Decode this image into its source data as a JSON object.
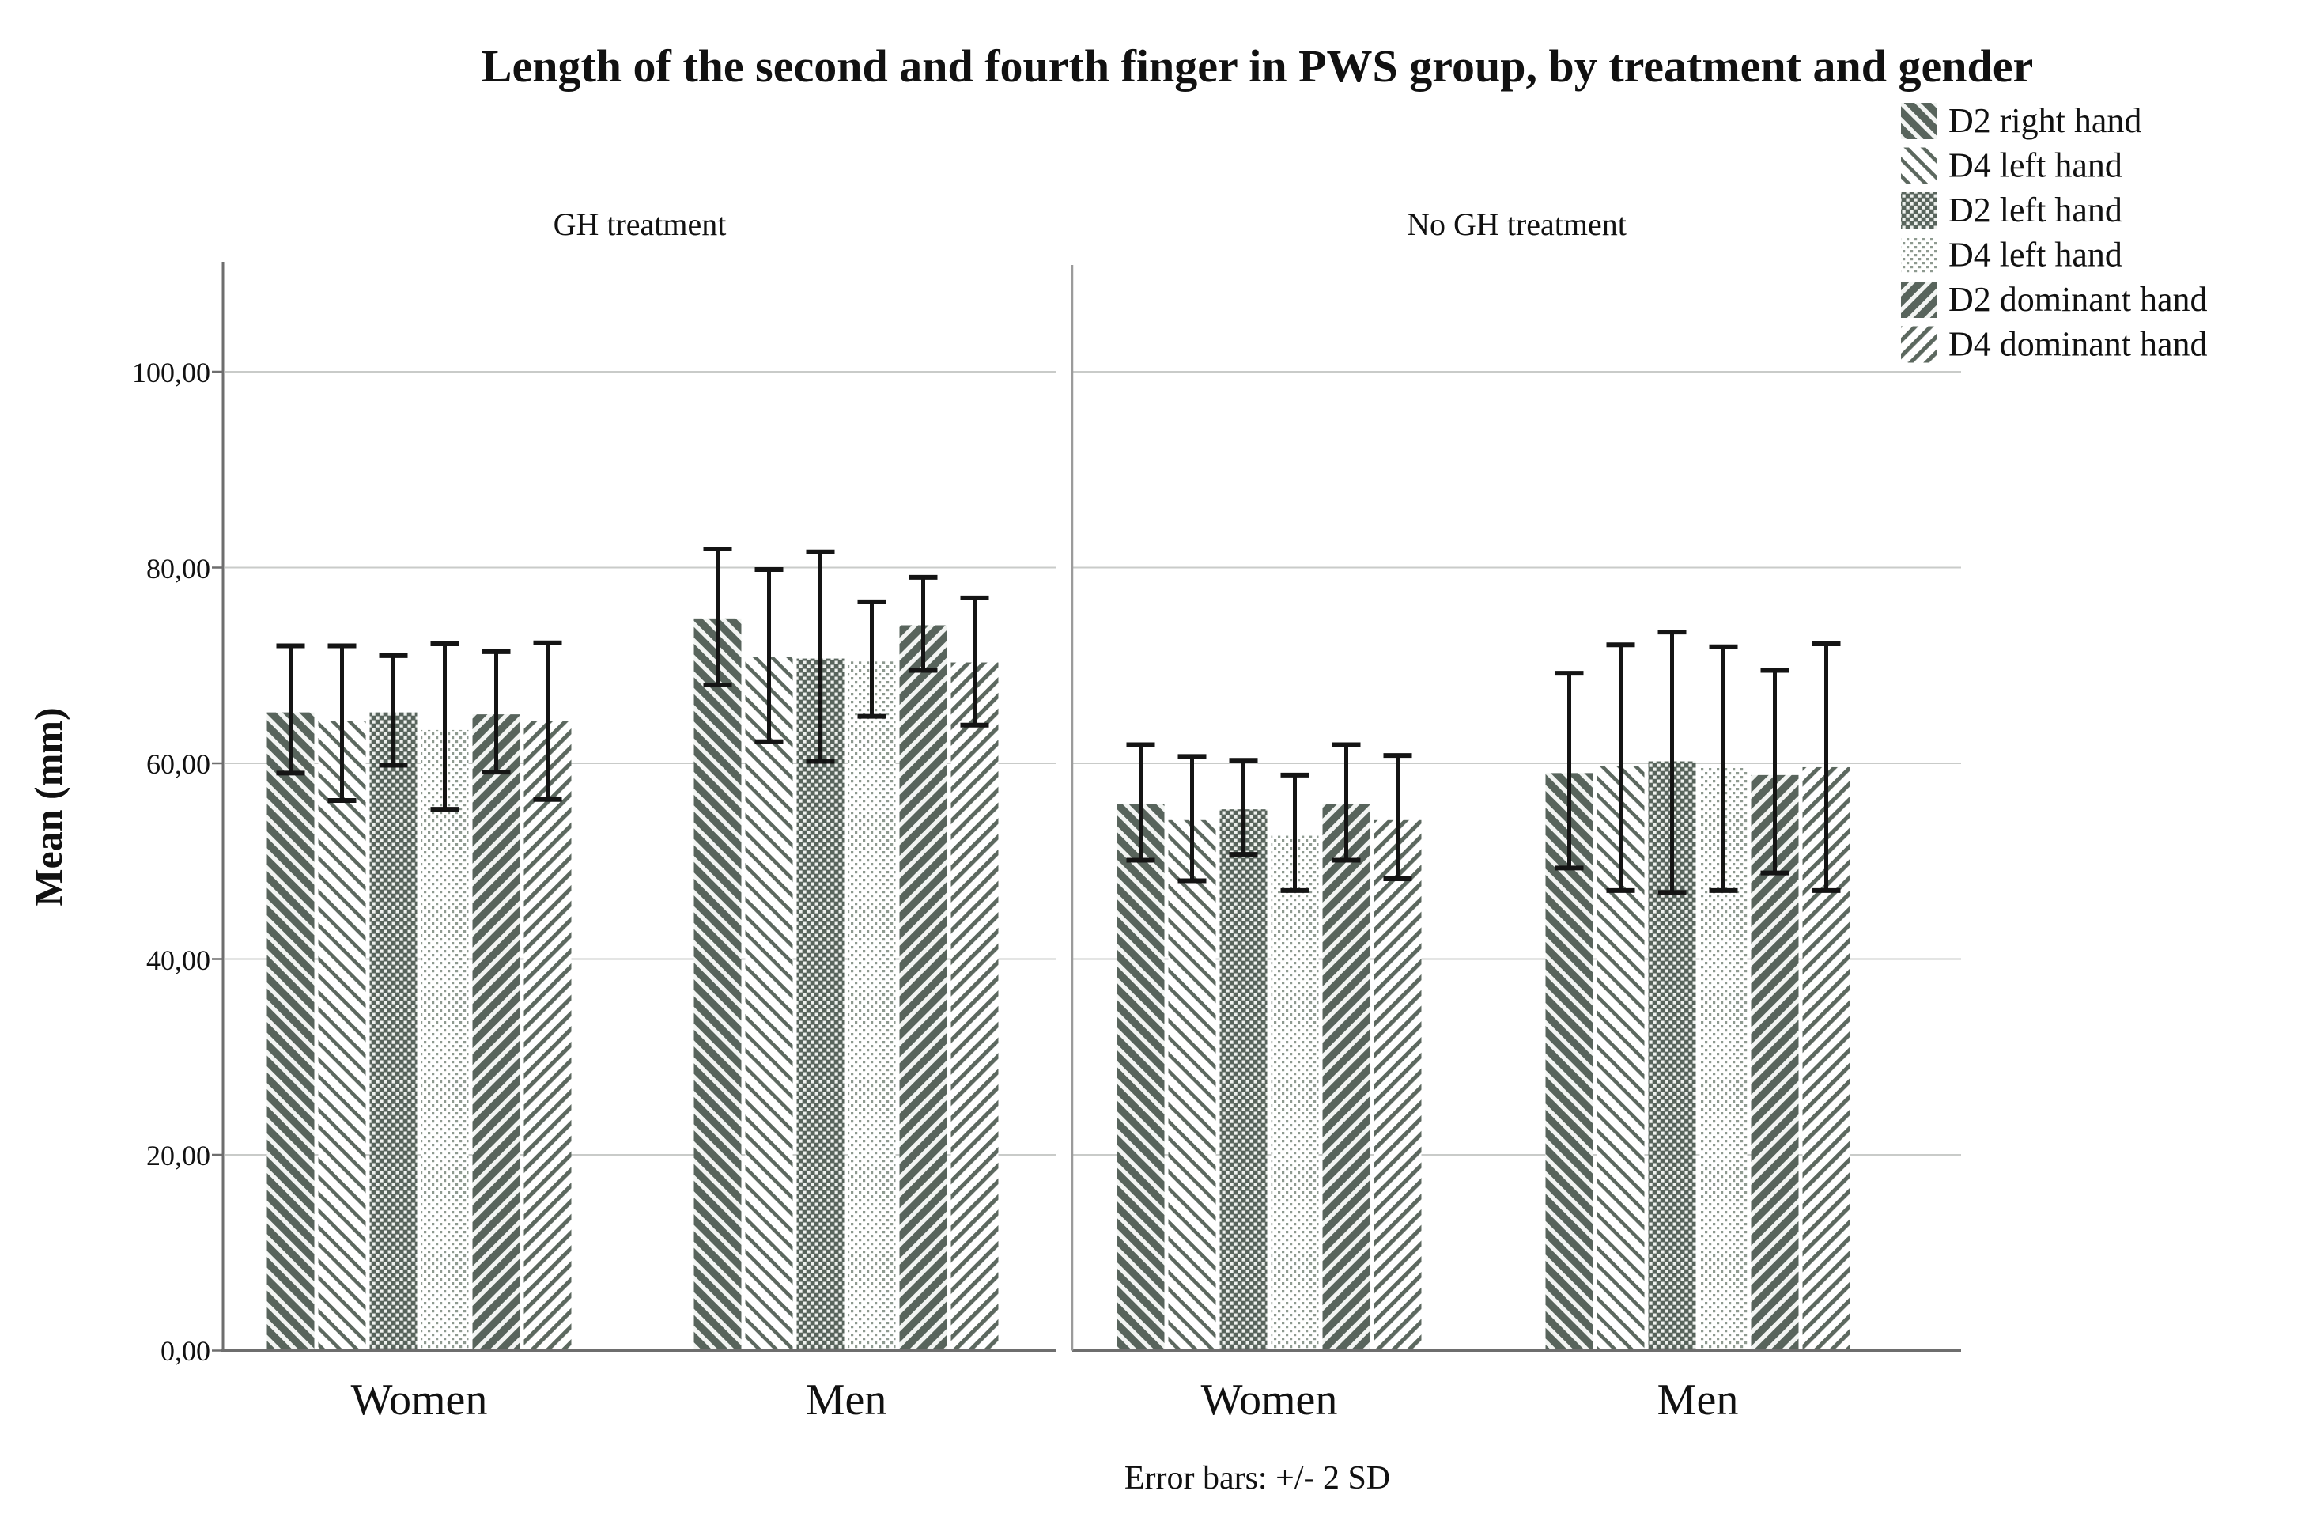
{
  "chart_data": {
    "type": "bar",
    "title": "Length of the second and fourth finger in PWS group, by treatment and gender",
    "ylabel": "Mean (mm)",
    "caption": "Error bars: +/- 2 SD",
    "error_bar_note": "+/- 2 SD",
    "grid": true,
    "legend_position": "top-right",
    "y_axis": {
      "min": 0,
      "max": 110,
      "ticks": [
        0,
        20,
        40,
        60,
        80,
        100
      ],
      "tick_labels": [
        "0,00",
        "20,00",
        "40,00",
        "60,00",
        "80,00",
        "100,00"
      ]
    },
    "panels": [
      {
        "title": "GH treatment"
      },
      {
        "title": "No GH treatment"
      }
    ],
    "groups": [
      {
        "panel": 0,
        "label": "Women"
      },
      {
        "panel": 0,
        "label": "Men"
      },
      {
        "panel": 1,
        "label": "Women"
      },
      {
        "panel": 1,
        "label": "Men"
      }
    ],
    "series": [
      {
        "name": "D2 right hand",
        "pattern": "diagonal-thick-backslash",
        "values": [
          65.2,
          74.8,
          55.8,
          59.0
        ],
        "err_low": [
          59.0,
          68.0,
          50.1,
          49.3
        ],
        "err_high": [
          72.0,
          81.9,
          61.9,
          69.2
        ]
      },
      {
        "name": "D4 left hand",
        "pattern": "diagonal-thin-backslash",
        "values": [
          64.3,
          70.9,
          54.2,
          59.7
        ],
        "err_low": [
          56.2,
          62.2,
          48.0,
          47.0
        ],
        "err_high": [
          72.0,
          79.8,
          60.7,
          72.1
        ]
      },
      {
        "name": "D2 left hand",
        "pattern": "checkerboard",
        "values": [
          65.2,
          70.7,
          55.3,
          60.2
        ],
        "err_low": [
          59.8,
          60.2,
          50.7,
          46.8
        ],
        "err_high": [
          71.0,
          81.6,
          60.3,
          73.4
        ]
      },
      {
        "name": "D4 left hand",
        "pattern": "dots",
        "values": [
          63.4,
          70.4,
          52.6,
          59.6
        ],
        "err_low": [
          55.3,
          64.8,
          47.0,
          47.0
        ],
        "err_high": [
          72.2,
          76.5,
          58.8,
          71.9
        ]
      },
      {
        "name": "D2 dominant hand",
        "pattern": "diagonal-thick-slash",
        "values": [
          65.0,
          74.1,
          55.8,
          58.8
        ],
        "err_low": [
          59.1,
          69.5,
          50.1,
          48.8
        ],
        "err_high": [
          71.4,
          79.0,
          61.9,
          69.5
        ]
      },
      {
        "name": "D4 dominant hand",
        "pattern": "diagonal-thin-slash",
        "values": [
          64.3,
          70.3,
          54.2,
          59.6
        ],
        "err_low": [
          56.3,
          63.9,
          48.2,
          47.0
        ],
        "err_high": [
          72.3,
          76.9,
          60.8,
          72.2
        ]
      }
    ],
    "colors": {
      "bar_green": "#58645c",
      "pattern_light": "#f2f4f2",
      "dot_green": "#8e9a90",
      "grid": "#c9cbc9",
      "axis": "#6e6e6e",
      "divider": "#9b9b9b",
      "error_bar": "#141414"
    }
  }
}
